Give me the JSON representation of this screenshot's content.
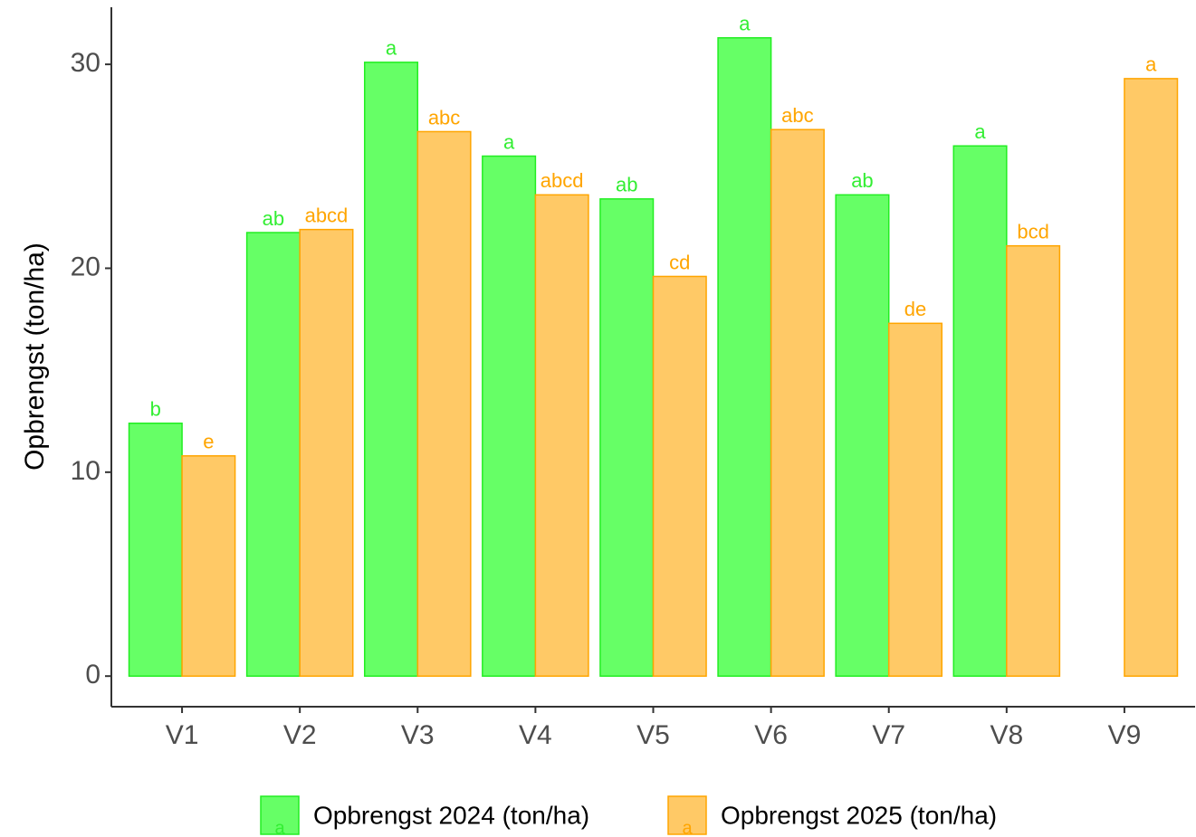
{
  "chart_data": {
    "type": "bar",
    "ylabel": "Opbrengst (ton/ha)",
    "categories": [
      "V1",
      "V2",
      "V3",
      "V4",
      "V5",
      "V6",
      "V7",
      "V8",
      "V9"
    ],
    "series": [
      {
        "name": "Opbrengst 2024 (ton/ha)",
        "color": "#66ff66",
        "stroke": "#22ee22",
        "label_color": "#33ee33",
        "key_label": "a",
        "values": [
          12.4,
          21.75,
          30.1,
          25.5,
          23.4,
          31.3,
          23.6,
          26.0,
          null
        ],
        "letters": [
          "b",
          "ab",
          "a",
          "a",
          "ab",
          "a",
          "ab",
          "a",
          null
        ]
      },
      {
        "name": "Opbrengst 2025 (ton/ha)",
        "color": "#ffc966",
        "stroke": "#ffa500",
        "label_color": "#ffa500",
        "key_label": "a",
        "values": [
          10.8,
          21.9,
          26.7,
          23.6,
          19.6,
          26.8,
          17.3,
          21.1,
          29.3
        ],
        "letters": [
          "e",
          "abcd",
          "abc",
          "abcd",
          "cd",
          "abc",
          "de",
          "bcd",
          "a"
        ]
      }
    ],
    "ylim": [
      -1.5,
      32.8
    ],
    "yticks": [
      0,
      10,
      20,
      30
    ],
    "grid": false,
    "legend": "bottom"
  }
}
